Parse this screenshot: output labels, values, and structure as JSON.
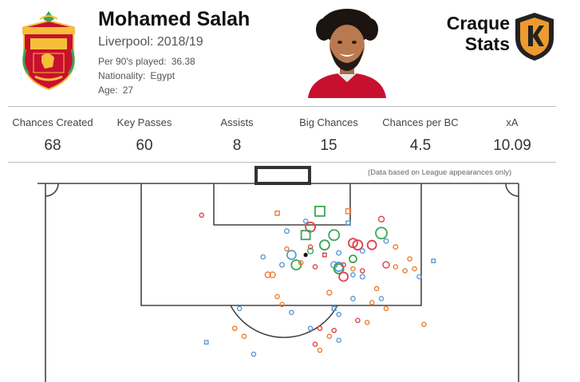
{
  "player": {
    "name": "Mohamed Salah",
    "club_season": "Liverpool: 2018/19",
    "per90_label": "Per 90's played:",
    "per90_value": "36.38",
    "nationality_label": "Nationality:",
    "nationality_value": "Egypt",
    "age_label": "Age:",
    "age_value": "27"
  },
  "brand": {
    "line1": "Craque",
    "line2": "Stats"
  },
  "stats": [
    {
      "label": "Chances Created",
      "value": "68"
    },
    {
      "label": "Key Passes",
      "value": "60"
    },
    {
      "label": "Assists",
      "value": "8"
    },
    {
      "label": "Big Chances",
      "value": "15"
    },
    {
      "label": "Chances per BC",
      "value": "4.5"
    },
    {
      "label": "xA",
      "value": "10.09"
    }
  ],
  "note": "(Data based on League appearances only)",
  "colors": {
    "blue": "#5b9bd5",
    "orange": "#ed7d31",
    "red": "#e0404a",
    "green": "#3aa655",
    "crest_red": "#c8102e",
    "crest_gold": "#f6bf3a"
  },
  "chart_data": {
    "type": "scatter",
    "description_of_axes": "pitch coordinates, x 0-100 width, y 0-100 depth from goal line",
    "points": [
      {
        "x": 33,
        "y": 16,
        "c": "red",
        "s": "circle",
        "r": 2.6
      },
      {
        "x": 49,
        "y": 15,
        "c": "orange",
        "s": "square",
        "r": 2.6
      },
      {
        "x": 58,
        "y": 14,
        "c": "green",
        "s": "square",
        "r": 6
      },
      {
        "x": 64,
        "y": 14,
        "c": "orange",
        "s": "square",
        "r": 3
      },
      {
        "x": 55,
        "y": 19,
        "c": "blue",
        "s": "circle",
        "r": 2.6
      },
      {
        "x": 64,
        "y": 20,
        "c": "blue",
        "s": "square",
        "r": 2.6
      },
      {
        "x": 71,
        "y": 18,
        "c": "red",
        "s": "circle",
        "r": 3.5
      },
      {
        "x": 56,
        "y": 22,
        "c": "red",
        "s": "circle",
        "r": 6
      },
      {
        "x": 51,
        "y": 24,
        "c": "blue",
        "s": "circle",
        "r": 2.8
      },
      {
        "x": 55,
        "y": 26,
        "c": "green",
        "s": "square",
        "r": 5.5
      },
      {
        "x": 61,
        "y": 26,
        "c": "green",
        "s": "circle",
        "r": 6.5
      },
      {
        "x": 71,
        "y": 25,
        "c": "green",
        "s": "circle",
        "r": 7
      },
      {
        "x": 72,
        "y": 29,
        "c": "blue",
        "s": "circle",
        "r": 2.8
      },
      {
        "x": 59,
        "y": 31,
        "c": "green",
        "s": "circle",
        "r": 6
      },
      {
        "x": 65,
        "y": 30,
        "c": "red",
        "s": "circle",
        "r": 5.5
      },
      {
        "x": 66,
        "y": 31,
        "c": "red",
        "s": "circle",
        "r": 6
      },
      {
        "x": 69,
        "y": 31,
        "c": "red",
        "s": "circle",
        "r": 5.5
      },
      {
        "x": 74,
        "y": 32,
        "c": "orange",
        "s": "circle",
        "r": 2.8
      },
      {
        "x": 51,
        "y": 33,
        "c": "orange",
        "s": "circle",
        "r": 2.6
      },
      {
        "x": 56,
        "y": 32,
        "c": "red",
        "s": "circle",
        "r": 2.6
      },
      {
        "x": 56,
        "y": 34,
        "c": "green",
        "s": "circle",
        "r": 3.5
      },
      {
        "x": 52,
        "y": 36,
        "c": "blue",
        "s": "circle",
        "r": 5.5
      },
      {
        "x": 55,
        "y": 36,
        "c": "black",
        "s": "circle",
        "r": 2.6
      },
      {
        "x": 59,
        "y": 36,
        "c": "red",
        "s": "square",
        "r": 2.2
      },
      {
        "x": 62,
        "y": 35,
        "c": "blue",
        "s": "circle",
        "r": 2.8
      },
      {
        "x": 67,
        "y": 34,
        "c": "blue",
        "s": "circle",
        "r": 2.8
      },
      {
        "x": 46,
        "y": 37,
        "c": "blue",
        "s": "circle",
        "r": 2.6
      },
      {
        "x": 65,
        "y": 38,
        "c": "green",
        "s": "circle",
        "r": 4.5
      },
      {
        "x": 77,
        "y": 38,
        "c": "orange",
        "s": "circle",
        "r": 2.6
      },
      {
        "x": 82,
        "y": 39,
        "c": "blue",
        "s": "square",
        "r": 2.2
      },
      {
        "x": 50,
        "y": 41,
        "c": "blue",
        "s": "circle",
        "r": 2.8
      },
      {
        "x": 53,
        "y": 41,
        "c": "green",
        "s": "circle",
        "r": 6
      },
      {
        "x": 54,
        "y": 40,
        "c": "orange",
        "s": "circle",
        "r": 2.6
      },
      {
        "x": 57,
        "y": 42,
        "c": "red",
        "s": "circle",
        "r": 2.6
      },
      {
        "x": 61,
        "y": 41,
        "c": "blue",
        "s": "circle",
        "r": 4
      },
      {
        "x": 62,
        "y": 42,
        "c": "blue",
        "s": "circle",
        "r": 5.5
      },
      {
        "x": 62,
        "y": 43,
        "c": "green",
        "s": "circle",
        "r": 6
      },
      {
        "x": 63,
        "y": 41,
        "c": "red",
        "s": "circle",
        "r": 2.6
      },
      {
        "x": 65,
        "y": 43,
        "c": "orange",
        "s": "circle",
        "r": 2.6
      },
      {
        "x": 67,
        "y": 44,
        "c": "red",
        "s": "circle",
        "r": 2.6
      },
      {
        "x": 72,
        "y": 41,
        "c": "red",
        "s": "circle",
        "r": 4
      },
      {
        "x": 74,
        "y": 42,
        "c": "orange",
        "s": "circle",
        "r": 2.6
      },
      {
        "x": 76,
        "y": 44,
        "c": "orange",
        "s": "circle",
        "r": 2.6
      },
      {
        "x": 78,
        "y": 43,
        "c": "orange",
        "s": "circle",
        "r": 2.6
      },
      {
        "x": 47,
        "y": 46,
        "c": "orange",
        "s": "circle",
        "r": 3.5
      },
      {
        "x": 48,
        "y": 46,
        "c": "orange",
        "s": "circle",
        "r": 3.5
      },
      {
        "x": 65,
        "y": 46,
        "c": "blue",
        "s": "circle",
        "r": 2.6
      },
      {
        "x": 67,
        "y": 47,
        "c": "blue",
        "s": "circle",
        "r": 2.8
      },
      {
        "x": 63,
        "y": 47,
        "c": "red",
        "s": "circle",
        "r": 5.5
      },
      {
        "x": 79,
        "y": 47,
        "c": "blue",
        "s": "circle",
        "r": 2.6
      },
      {
        "x": 70,
        "y": 53,
        "c": "orange",
        "s": "circle",
        "r": 2.6
      },
      {
        "x": 60,
        "y": 55,
        "c": "orange",
        "s": "circle",
        "r": 3
      },
      {
        "x": 49,
        "y": 57,
        "c": "orange",
        "s": "circle",
        "r": 2.6
      },
      {
        "x": 50,
        "y": 61,
        "c": "orange",
        "s": "circle",
        "r": 2.6
      },
      {
        "x": 65,
        "y": 58,
        "c": "blue",
        "s": "circle",
        "r": 2.8
      },
      {
        "x": 69,
        "y": 60,
        "c": "orange",
        "s": "circle",
        "r": 2.6
      },
      {
        "x": 71,
        "y": 58,
        "c": "blue",
        "s": "circle",
        "r": 2.6
      },
      {
        "x": 72,
        "y": 63,
        "c": "orange",
        "s": "circle",
        "r": 2.6
      },
      {
        "x": 61,
        "y": 63,
        "c": "blue",
        "s": "square",
        "r": 2.4
      },
      {
        "x": 41,
        "y": 63,
        "c": "blue",
        "s": "circle",
        "r": 2.6
      },
      {
        "x": 52,
        "y": 65,
        "c": "blue",
        "s": "circle",
        "r": 2.6
      },
      {
        "x": 62,
        "y": 66,
        "c": "blue",
        "s": "circle",
        "r": 2.6
      },
      {
        "x": 66,
        "y": 69,
        "c": "red",
        "s": "circle",
        "r": 2.6
      },
      {
        "x": 68,
        "y": 70,
        "c": "orange",
        "s": "circle",
        "r": 2.6
      },
      {
        "x": 80,
        "y": 71,
        "c": "orange",
        "s": "circle",
        "r": 2.6
      },
      {
        "x": 40,
        "y": 73,
        "c": "orange",
        "s": "circle",
        "r": 2.6
      },
      {
        "x": 56,
        "y": 73,
        "c": "blue",
        "s": "circle",
        "r": 2.6
      },
      {
        "x": 58,
        "y": 73,
        "c": "red",
        "s": "circle",
        "r": 2.6
      },
      {
        "x": 61,
        "y": 74,
        "c": "red",
        "s": "circle",
        "r": 2.6
      },
      {
        "x": 60,
        "y": 77,
        "c": "orange",
        "s": "circle",
        "r": 2.6
      },
      {
        "x": 42,
        "y": 77,
        "c": "orange",
        "s": "circle",
        "r": 2.6
      },
      {
        "x": 62,
        "y": 79,
        "c": "blue",
        "s": "circle",
        "r": 2.6
      },
      {
        "x": 34,
        "y": 80,
        "c": "blue",
        "s": "square",
        "r": 2.2
      },
      {
        "x": 57,
        "y": 81,
        "c": "red",
        "s": "circle",
        "r": 2.6
      },
      {
        "x": 58,
        "y": 84,
        "c": "orange",
        "s": "circle",
        "r": 2.6
      },
      {
        "x": 44,
        "y": 86,
        "c": "blue",
        "s": "circle",
        "r": 2.6
      }
    ]
  }
}
